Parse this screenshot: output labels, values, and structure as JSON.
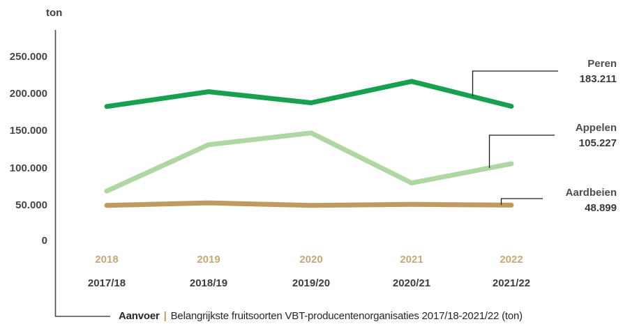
{
  "axis": {
    "unit_label": "ton",
    "y_ticks": [
      "250.000",
      "200.000",
      "150.000",
      "100.000",
      "50.000",
      "0"
    ]
  },
  "x_axis": {
    "years_gold": [
      "2018",
      "2019",
      "2020",
      "2021",
      "2022"
    ],
    "seasons": [
      "2017/18",
      "2018/19",
      "2019/20",
      "2020/21",
      "2021/22"
    ]
  },
  "legend": {
    "entries": [
      {
        "name": "Peren",
        "value": "183.211"
      },
      {
        "name": "Appelen",
        "value": "105.227"
      },
      {
        "name": "Aardbeien",
        "value": "48.899"
      }
    ]
  },
  "caption": {
    "prefix": "Aanvoer",
    "separator": "|",
    "text": "Belangrijkste fruitsoorten VBT-producentenorganisaties 2017/18-2021/22 (ton)"
  },
  "colors": {
    "peren": "#17a04e",
    "appelen": "#aed7a4",
    "aardbeien": "#bf9b62",
    "gold_text": "#c6a876",
    "dark_text": "#3d3d3d",
    "axis_line": "#4a4a4a",
    "callout_line": "#1c1c1c"
  },
  "chart_data": {
    "type": "line",
    "title": "Aanvoer | Belangrijkste fruitsoorten VBT-producentenorganisaties 2017/18-2021/22 (ton)",
    "xlabel": "",
    "ylabel": "ton",
    "categories": [
      "2017/18",
      "2018/19",
      "2019/20",
      "2020/21",
      "2021/22"
    ],
    "categories_secondary": [
      "2018",
      "2019",
      "2020",
      "2021",
      "2022"
    ],
    "ylim": [
      0,
      250000
    ],
    "y_tick_values": [
      0,
      50000,
      100000,
      150000,
      200000,
      250000
    ],
    "grid": false,
    "legend_position": "right-of-line-callouts",
    "series": [
      {
        "name": "Peren",
        "color": "#17a04e",
        "values": [
          183000,
          203000,
          188000,
          217000,
          183211
        ],
        "end_value_label": "183.211"
      },
      {
        "name": "Appelen",
        "color": "#aed7a4",
        "values": [
          68000,
          131000,
          147000,
          79000,
          105227
        ],
        "end_value_label": "105.227"
      },
      {
        "name": "Aardbeien",
        "color": "#bf9b62",
        "values": [
          48500,
          52000,
          48500,
          50000,
          48899
        ],
        "end_value_label": "48.899"
      }
    ]
  }
}
